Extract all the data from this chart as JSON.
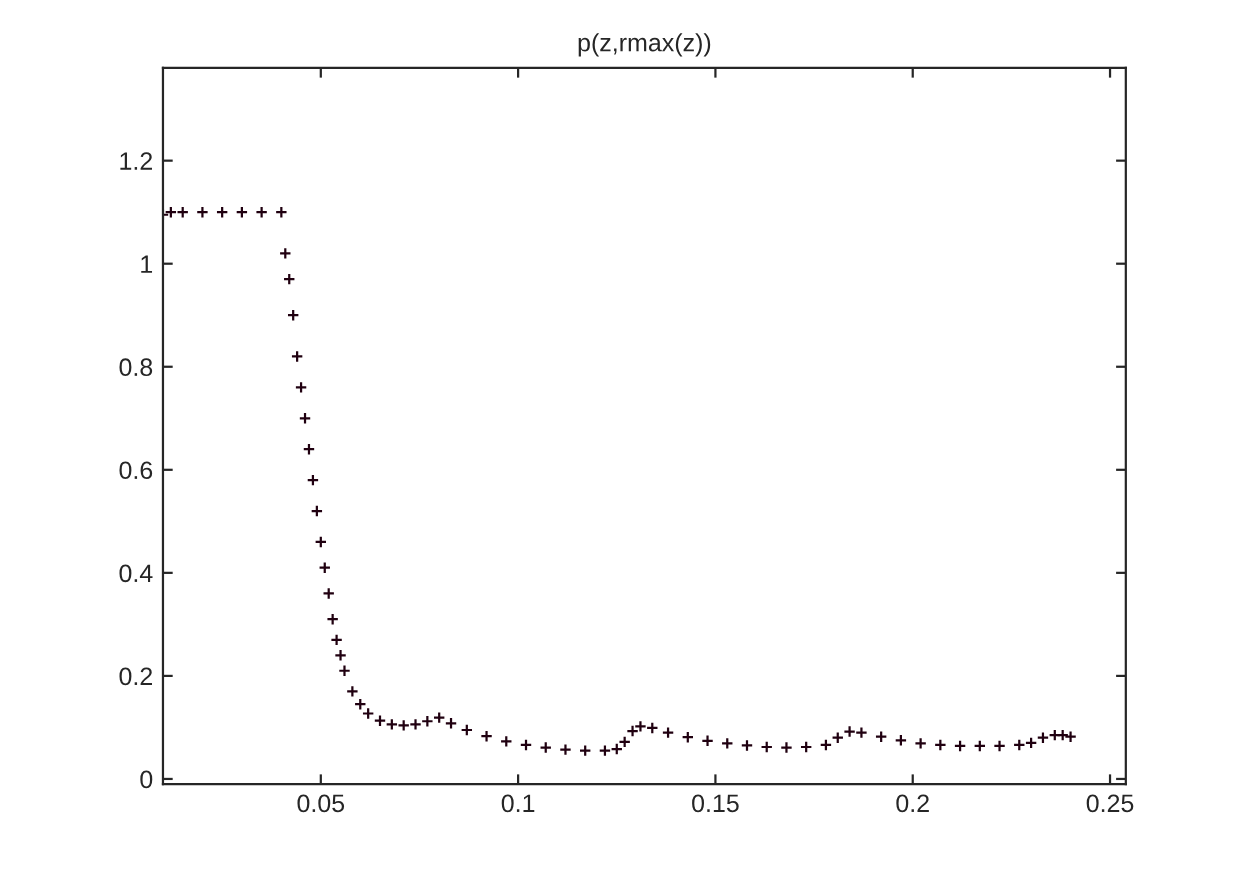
{
  "chart_data": {
    "type": "scatter",
    "title": "p(z,rmax(z))",
    "marker": "cross",
    "grid": false,
    "legend": false,
    "x": [
      0.01,
      0.012,
      0.015,
      0.02,
      0.025,
      0.03,
      0.035,
      0.04,
      0.041,
      0.042,
      0.043,
      0.044,
      0.045,
      0.046,
      0.047,
      0.048,
      0.049,
      0.05,
      0.051,
      0.052,
      0.053,
      0.054,
      0.055,
      0.056,
      0.058,
      0.06,
      0.062,
      0.065,
      0.068,
      0.071,
      0.074,
      0.077,
      0.08,
      0.083,
      0.087,
      0.092,
      0.097,
      0.102,
      0.107,
      0.112,
      0.117,
      0.122,
      0.125,
      0.127,
      0.129,
      0.131,
      0.134,
      0.138,
      0.143,
      0.148,
      0.153,
      0.158,
      0.163,
      0.168,
      0.173,
      0.178,
      0.181,
      0.184,
      0.187,
      0.192,
      0.197,
      0.202,
      0.207,
      0.212,
      0.217,
      0.222,
      0.227,
      0.23,
      0.233,
      0.236,
      0.238,
      0.24
    ],
    "series": [
      {
        "color": "#200010",
        "values": [
          1.095,
          1.1,
          1.1,
          1.1,
          1.1,
          1.1,
          1.1,
          1.1,
          1.02,
          0.97,
          0.9,
          0.82,
          0.76,
          0.7,
          0.64,
          0.58,
          0.52,
          0.46,
          0.41,
          0.36,
          0.31,
          0.27,
          0.24,
          0.21,
          0.17,
          0.145,
          0.127,
          0.113,
          0.106,
          0.104,
          0.106,
          0.112,
          0.119,
          0.108,
          0.095,
          0.083,
          0.073,
          0.066,
          0.061,
          0.057,
          0.055,
          0.055,
          0.058,
          0.072,
          0.093,
          0.102,
          0.099,
          0.09,
          0.081,
          0.074,
          0.069,
          0.065,
          0.062,
          0.061,
          0.062,
          0.066,
          0.08,
          0.092,
          0.09,
          0.082,
          0.075,
          0.069,
          0.066,
          0.064,
          0.064,
          0.064,
          0.066,
          0.07,
          0.08,
          0.085,
          0.085,
          0.082
        ]
      }
    ],
    "xlim": [
      0.01,
      0.254
    ],
    "ylim": [
      -0.01,
      1.38
    ],
    "xticks": [
      0.05,
      0.1,
      0.15,
      0.2,
      0.25
    ],
    "yticks": [
      0,
      0.2,
      0.4,
      0.6,
      0.8,
      1,
      1.2
    ]
  }
}
